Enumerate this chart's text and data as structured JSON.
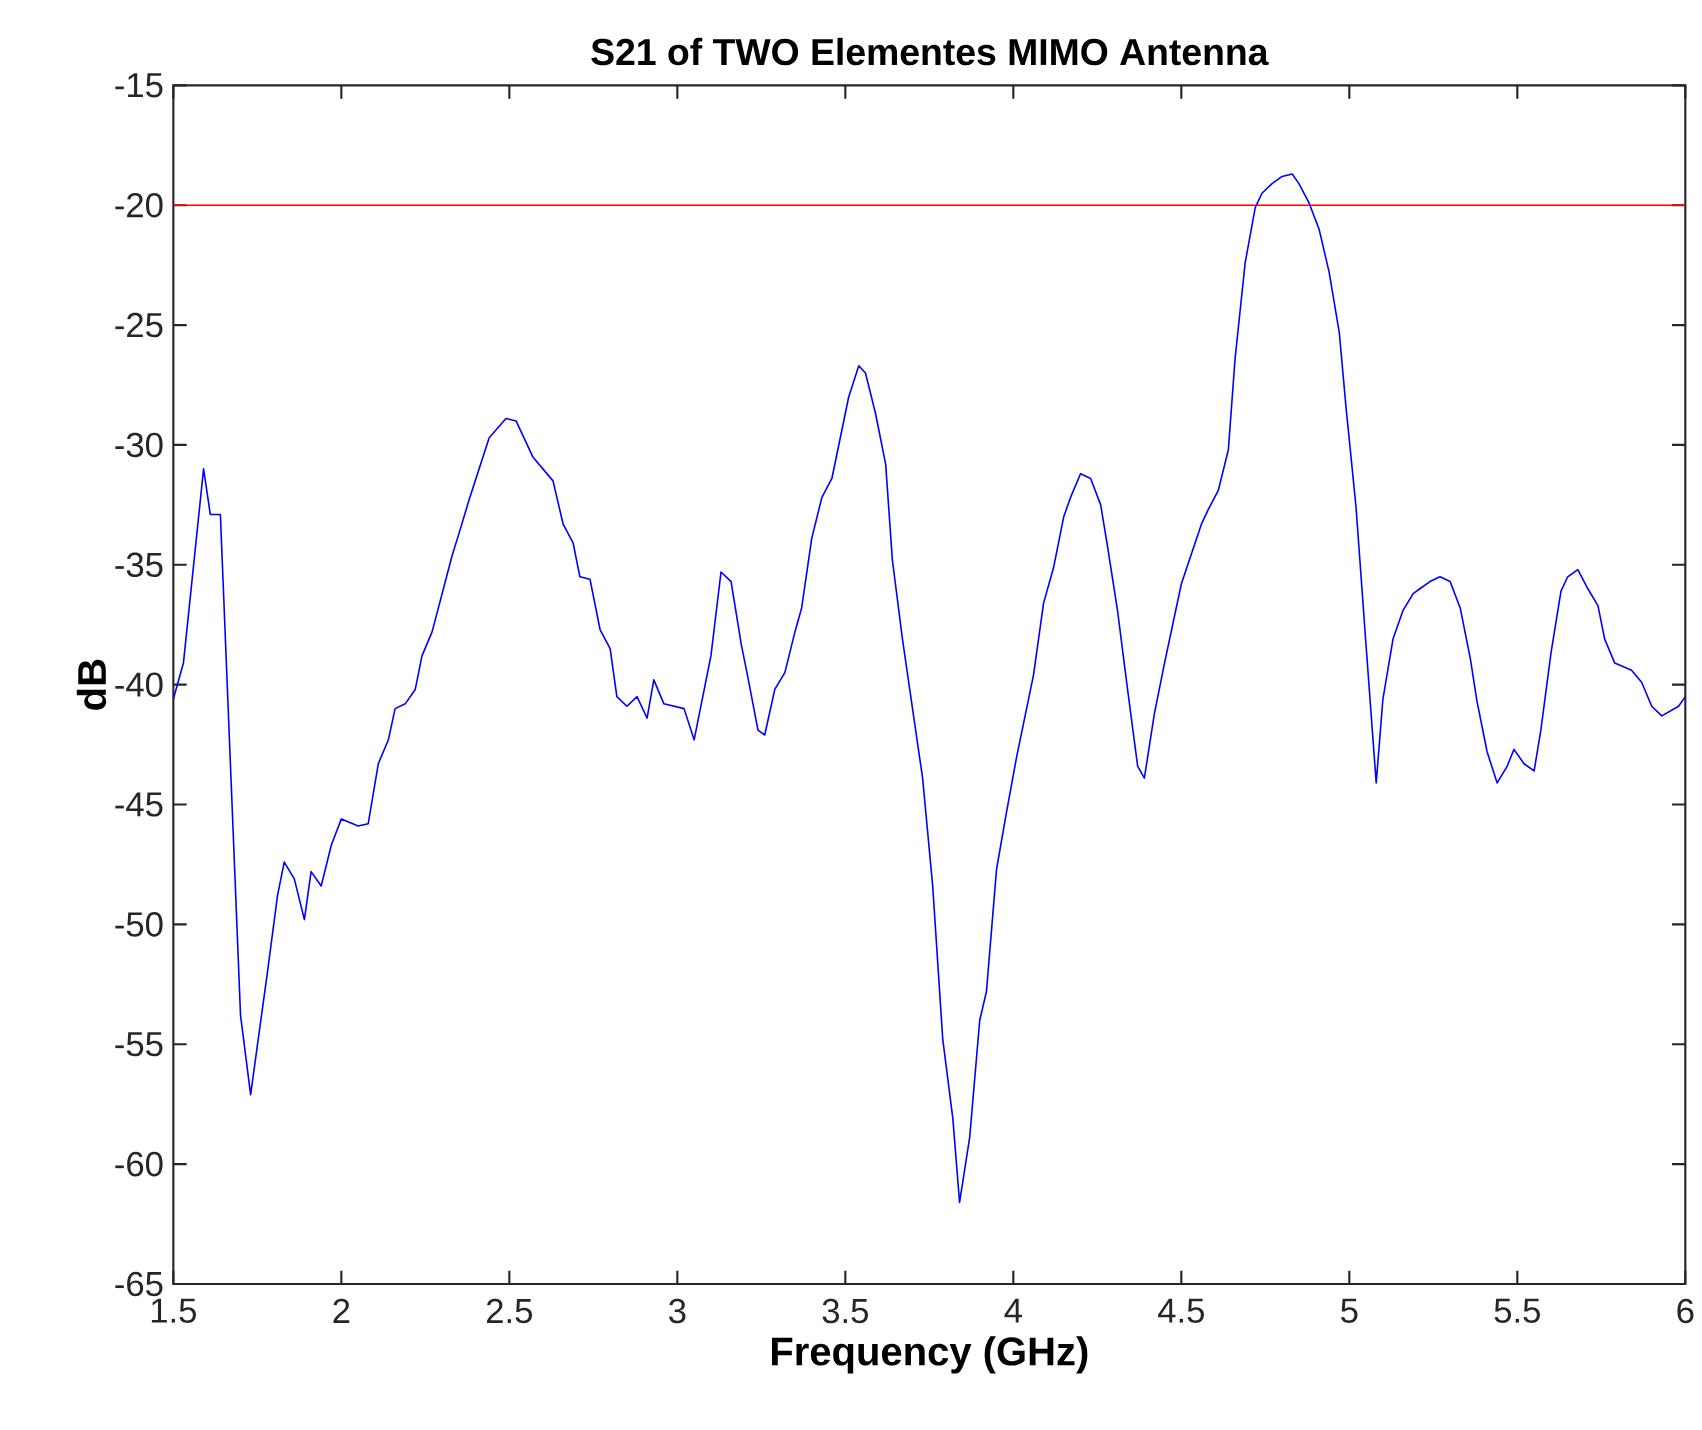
{
  "chart_data": {
    "type": "line",
    "title": "S21 of TWO Elementes MIMO Antenna",
    "xlabel": "Frequency      (GHz)",
    "ylabel": "dB",
    "xlim": [
      1.5,
      6
    ],
    "ylim": [
      -65,
      -15
    ],
    "xticks": [
      1.5,
      2,
      2.5,
      3,
      3.5,
      4,
      4.5,
      5,
      5.5,
      6
    ],
    "yticks": [
      -65,
      -60,
      -55,
      -50,
      -45,
      -40,
      -35,
      -30,
      -25,
      -20,
      -15
    ],
    "ref_lines": [
      {
        "axis": "y",
        "value": -20,
        "color": "#ff0000"
      }
    ],
    "series": [
      {
        "color": "#0000ff",
        "x": [
          1.5,
          1.53,
          1.59,
          1.61,
          1.64,
          1.7,
          1.73,
          1.78,
          1.81,
          1.83,
          1.86,
          1.89,
          1.91,
          1.94,
          1.97,
          2.0,
          2.05,
          2.08,
          2.11,
          2.14,
          2.16,
          2.19,
          2.22,
          2.24,
          2.27,
          2.33,
          2.35,
          2.38,
          2.44,
          2.49,
          2.52,
          2.57,
          2.63,
          2.66,
          2.69,
          2.71,
          2.74,
          2.77,
          2.8,
          2.82,
          2.85,
          2.88,
          2.91,
          2.93,
          2.96,
          3.02,
          3.05,
          3.1,
          3.13,
          3.16,
          3.19,
          3.21,
          3.24,
          3.26,
          3.29,
          3.32,
          3.35,
          3.37,
          3.4,
          3.43,
          3.46,
          3.51,
          3.54,
          3.56,
          3.59,
          3.62,
          3.64,
          3.67,
          3.73,
          3.76,
          3.79,
          3.82,
          3.84,
          3.87,
          3.9,
          3.92,
          3.95,
          3.98,
          4.01,
          4.06,
          4.09,
          4.12,
          4.15,
          4.17,
          4.2,
          4.23,
          4.26,
          4.28,
          4.31,
          4.34,
          4.37,
          4.39,
          4.42,
          4.45,
          4.5,
          4.56,
          4.58,
          4.61,
          4.64,
          4.66,
          4.69,
          4.72,
          4.74,
          4.77,
          4.8,
          4.83,
          4.85,
          4.88,
          4.91,
          4.94,
          4.97,
          4.99,
          5.02,
          5.05,
          5.08,
          5.1,
          5.13,
          5.16,
          5.19,
          5.21,
          5.24,
          5.27,
          5.3,
          5.33,
          5.36,
          5.38,
          5.41,
          5.44,
          5.47,
          5.49,
          5.52,
          5.55,
          5.57,
          5.6,
          5.63,
          5.65,
          5.68,
          5.71,
          5.74,
          5.76,
          5.79,
          5.84,
          5.87,
          5.9,
          5.93,
          5.98,
          6.0
        ],
        "values": [
          -40.6,
          -39.1,
          -31.0,
          -32.9,
          -32.9,
          -53.8,
          -57.1,
          -52.0,
          -48.8,
          -47.4,
          -48.1,
          -49.8,
          -47.8,
          -48.4,
          -46.7,
          -45.6,
          -45.9,
          -45.8,
          -43.3,
          -42.3,
          -41.0,
          -40.8,
          -40.2,
          -38.8,
          -37.8,
          -34.6,
          -33.7,
          -32.3,
          -29.7,
          -28.9,
          -29.0,
          -30.5,
          -31.5,
          -33.3,
          -34.1,
          -35.5,
          -35.6,
          -37.7,
          -38.5,
          -40.5,
          -40.9,
          -40.5,
          -41.4,
          -39.8,
          -40.8,
          -41.0,
          -42.3,
          -38.8,
          -35.3,
          -35.7,
          -38.3,
          -39.7,
          -41.9,
          -42.1,
          -40.2,
          -39.5,
          -37.8,
          -36.8,
          -33.9,
          -32.2,
          -31.4,
          -28.0,
          -26.7,
          -27.0,
          -28.7,
          -30.8,
          -34.8,
          -38.1,
          -43.9,
          -48.4,
          -54.8,
          -58.1,
          -61.6,
          -58.9,
          -54.0,
          -52.8,
          -47.7,
          -45.3,
          -43.0,
          -39.6,
          -36.6,
          -35.1,
          -33.0,
          -32.2,
          -31.2,
          -31.4,
          -32.5,
          -34.2,
          -36.9,
          -40.2,
          -43.4,
          -43.9,
          -41.2,
          -39.1,
          -35.8,
          -33.3,
          -32.7,
          -31.9,
          -30.2,
          -26.4,
          -22.4,
          -20.1,
          -19.5,
          -19.1,
          -18.8,
          -18.7,
          -19.1,
          -19.9,
          -21.0,
          -22.8,
          -25.3,
          -28.4,
          -32.6,
          -38.4,
          -44.1,
          -40.6,
          -38.1,
          -36.9,
          -36.2,
          -36.0,
          -35.7,
          -35.5,
          -35.7,
          -36.8,
          -38.9,
          -40.7,
          -42.8,
          -44.1,
          -43.4,
          -42.7,
          -43.3,
          -43.6,
          -41.9,
          -38.7,
          -36.1,
          -35.5,
          -35.2,
          -36.0,
          -36.7,
          -38.1,
          -39.1,
          -39.4,
          -39.9,
          -40.9,
          -41.3,
          -40.9,
          -40.5
        ]
      }
    ]
  }
}
